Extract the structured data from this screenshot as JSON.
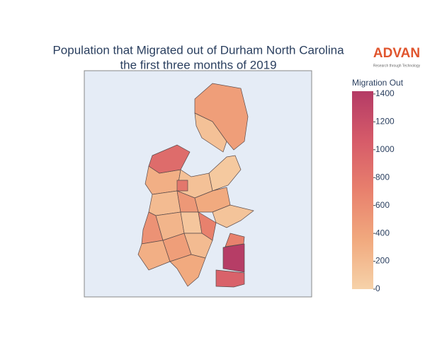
{
  "chart_data": {
    "type": "choropleth",
    "title": [
      "Population that Migrated out of Durham North Carolina",
      "the first three months of 2019"
    ],
    "logo": {
      "text": "ADVAN",
      "tagline": "Research through Technology"
    },
    "colorbar_title": "Migration Out",
    "zlim": [
      0,
      1420
    ],
    "zticks": [
      0,
      200,
      400,
      600,
      800,
      1000,
      1200,
      1400
    ],
    "colorscale": [
      "#f6d2a9",
      "#f1a97e",
      "#e8806d",
      "#d65b69",
      "#b43b66"
    ],
    "values": [
      450,
      150,
      300,
      150,
      80,
      200,
      500,
      350,
      120,
      550,
      250,
      100,
      700,
      300,
      450,
      200,
      350,
      800,
      1400,
      1000,
      700,
      900
    ]
  }
}
